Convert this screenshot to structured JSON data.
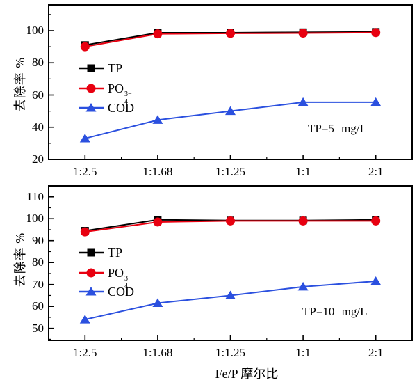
{
  "figure": {
    "xlabel": "Fe/P 摩尔比",
    "ylabel": "去除率 %"
  },
  "colors": {
    "tp": "#000000",
    "po4": "#e80010",
    "cod": "#2b50df",
    "frame": "#000000"
  },
  "chart_data": [
    {
      "type": "line",
      "annotation": "TP=5 mg/L",
      "ylabel": "去除率 %",
      "categories": [
        "1:2.5",
        "1:1.68",
        "1:1.25",
        "1:1",
        "2:1"
      ],
      "ylim": [
        20,
        116
      ],
      "yticks": [
        20,
        40,
        60,
        80,
        100
      ],
      "yticks_minor": [
        30,
        50,
        70,
        90,
        110
      ],
      "legend_position": "upper-left-inside",
      "grid": false,
      "series": [
        {
          "name": "TP",
          "marker": "square",
          "color": "#000000",
          "values": [
            91,
            98.7,
            98.7,
            99,
            99.2
          ]
        },
        {
          "name": "PO₄³⁻",
          "label_parts": {
            "base": "PO",
            "sup": "3−",
            "sub": "4"
          },
          "marker": "circle",
          "color": "#e80010",
          "values": [
            90,
            98,
            98.3,
            98.5,
            98.8
          ]
        },
        {
          "name": "COD",
          "marker": "triangle",
          "color": "#2b50df",
          "values": [
            33,
            44.5,
            50,
            55.5,
            55.5
          ]
        }
      ]
    },
    {
      "type": "line",
      "annotation": "TP=10 mg/L",
      "ylabel": "去除率 %",
      "categories": [
        "1:2.5",
        "1:1.68",
        "1:1.25",
        "1:1",
        "2:1"
      ],
      "ylim": [
        44.5,
        115
      ],
      "yticks": [
        50,
        60,
        70,
        80,
        90,
        100,
        110
      ],
      "yticks_minor": [
        45,
        55,
        65,
        75,
        85,
        95,
        105
      ],
      "legend_position": "upper-left-inside",
      "grid": false,
      "series": [
        {
          "name": "TP",
          "marker": "square",
          "color": "#000000",
          "values": [
            94.5,
            99.5,
            99.2,
            99.2,
            99.5
          ]
        },
        {
          "name": "PO₄³⁻",
          "label_parts": {
            "base": "PO",
            "sup": "3−",
            "sub": "4"
          },
          "marker": "circle",
          "color": "#e80010",
          "values": [
            94,
            98.5,
            99,
            99,
            99
          ]
        },
        {
          "name": "COD",
          "marker": "triangle",
          "color": "#2b50df",
          "values": [
            54,
            61.5,
            65,
            69,
            71.5
          ]
        }
      ]
    }
  ]
}
